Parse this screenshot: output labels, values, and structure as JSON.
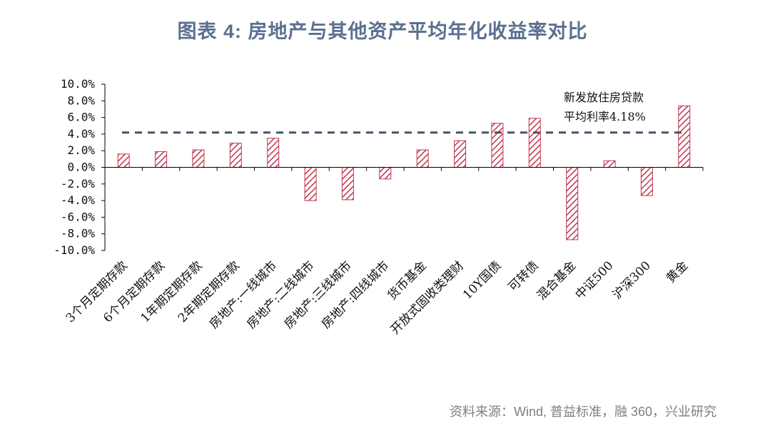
{
  "title": "图表 4:  房地产与其他资产平均年化收益率对比",
  "source": "资料来源：Wind, 普益标准，融 360，兴业研究",
  "colors": {
    "bar": "#c0354b",
    "reference": "#44546a",
    "axis": "#000000"
  },
  "chart_data": {
    "type": "bar",
    "categories": [
      "3个月定期存款",
      "6个月定期存款",
      "1年期定期存款",
      "2年期定期存款",
      "房地产:一线城市",
      "房地产:二线城市",
      "房地产:三线城市",
      "房地产:四线城市",
      "货币基金",
      "开放式固收类理财",
      "10Y国债",
      "可转债",
      "混合基金",
      "中证500",
      "沪深300",
      "黄金"
    ],
    "values": [
      1.6,
      1.9,
      2.1,
      2.9,
      3.5,
      -4.0,
      -3.9,
      -1.4,
      2.1,
      3.2,
      5.3,
      5.9,
      -8.7,
      0.8,
      -3.4,
      7.4
    ],
    "ylim": [
      -10,
      10
    ],
    "yticks": [
      "10.0%",
      "8.0%",
      "6.0%",
      "4.0%",
      "2.0%",
      "0.0%",
      "-2.0%",
      "-4.0%",
      "-6.0%",
      "-8.0%",
      "-10.0%"
    ],
    "ytick_values": [
      10,
      8,
      6,
      4,
      2,
      0,
      -2,
      -4,
      -6,
      -8,
      -10
    ],
    "reference_line": {
      "value": 4.18,
      "label_line1": "新发放住房贷款",
      "label_line2": "平均利率4.18%",
      "style": "dashed"
    },
    "grid": false,
    "legend": "none",
    "bar_fill": "diagonal-hatch"
  }
}
